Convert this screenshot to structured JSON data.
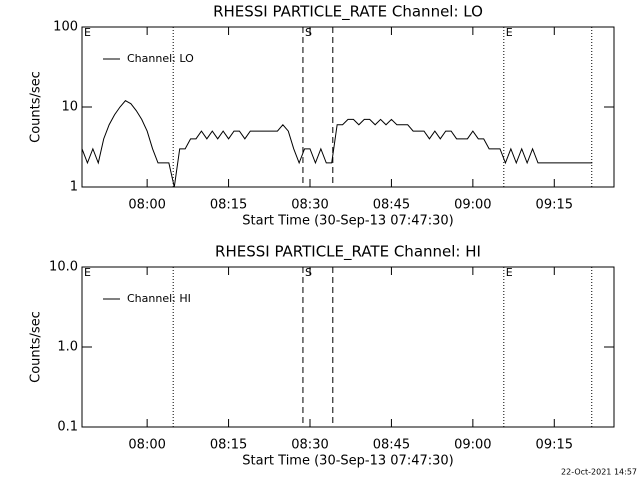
{
  "chart_data": [
    {
      "type": "line",
      "title": "RHESSI PARTICLE_RATE Channel: LO",
      "xlabel": "Start Time (30-Sep-13 07:47:30)",
      "ylabel": "Counts/sec",
      "log_y": true,
      "xlim": [
        468,
        566
      ],
      "ylim": [
        1,
        100
      ],
      "yticks": [
        1,
        10,
        100
      ],
      "xticks": [
        {
          "value": 480,
          "label": "08:00"
        },
        {
          "value": 495,
          "label": "08:15"
        },
        {
          "value": 510,
          "label": "08:30"
        },
        {
          "value": 525,
          "label": "08:45"
        },
        {
          "value": 540,
          "label": "09:00"
        },
        {
          "value": 555,
          "label": "09:15"
        }
      ],
      "markers": [
        {
          "x": 468,
          "label": "E"
        },
        {
          "x": 508.7,
          "label": "S"
        },
        {
          "x": 545.7,
          "label": "E"
        }
      ],
      "vlines": [
        {
          "x": 484.8,
          "style": "dotted"
        },
        {
          "x": 508.7,
          "style": "dashed"
        },
        {
          "x": 514.2,
          "style": "dashed"
        },
        {
          "x": 545.7,
          "style": "dotted"
        },
        {
          "x": 561.9,
          "style": "dotted"
        }
      ],
      "x": [
        468,
        469,
        470,
        471,
        472,
        473,
        474,
        475,
        476,
        477,
        478,
        479,
        480,
        481,
        482,
        483,
        484,
        485,
        486,
        487,
        488,
        489,
        490,
        491,
        492,
        493,
        494,
        495,
        496,
        497,
        498,
        499,
        500,
        501,
        502,
        503,
        504,
        505,
        506,
        507,
        508,
        509,
        510,
        511,
        512,
        513,
        514,
        515,
        516,
        517,
        518,
        519,
        520,
        521,
        522,
        523,
        524,
        525,
        526,
        527,
        528,
        529,
        530,
        531,
        532,
        533,
        534,
        535,
        536,
        537,
        538,
        539,
        540,
        541,
        542,
        543,
        544,
        545,
        546,
        547,
        548,
        549,
        550,
        551,
        552,
        553,
        554,
        555,
        556,
        557,
        558,
        559,
        560,
        561,
        562
      ],
      "series": [
        {
          "name": "Channel: LO",
          "color": "#000000",
          "values": [
            3,
            2,
            3,
            2,
            4,
            6,
            8,
            10,
            12,
            11,
            9,
            7,
            5,
            3,
            2,
            2,
            2,
            1,
            3,
            3,
            4,
            4,
            5,
            4,
            5,
            4,
            5,
            4,
            5,
            5,
            4,
            5,
            5,
            5,
            5,
            5,
            5,
            6,
            5,
            3,
            2,
            3,
            3,
            2,
            3,
            2,
            2,
            6,
            6,
            7,
            7,
            6,
            7,
            7,
            6,
            7,
            6,
            7,
            6,
            6,
            6,
            5,
            5,
            5,
            4,
            5,
            4,
            5,
            5,
            4,
            4,
            4,
            5,
            4,
            4,
            3,
            3,
            3,
            2,
            3,
            2,
            3,
            2,
            3,
            2,
            2,
            2,
            2,
            2,
            2,
            2,
            2,
            2,
            2,
            2
          ]
        }
      ]
    },
    {
      "type": "line",
      "title": "RHESSI PARTICLE_RATE Channel: HI",
      "xlabel": "Start Time (30-Sep-13 07:47:30)",
      "ylabel": "Counts/sec",
      "log_y": true,
      "xlim": [
        468,
        566
      ],
      "ylim": [
        0.1,
        10
      ],
      "yticks": [
        0.1,
        {
          "value": 1,
          "label": "1.0"
        },
        {
          "value": 10,
          "label": "10.0"
        }
      ],
      "xticks": [
        {
          "value": 480,
          "label": "08:00"
        },
        {
          "value": 495,
          "label": "08:15"
        },
        {
          "value": 510,
          "label": "08:30"
        },
        {
          "value": 525,
          "label": "08:45"
        },
        {
          "value": 540,
          "label": "09:00"
        },
        {
          "value": 555,
          "label": "09:15"
        }
      ],
      "markers": [
        {
          "x": 468,
          "label": "E"
        },
        {
          "x": 508.7,
          "label": "S"
        },
        {
          "x": 545.7,
          "label": "E"
        }
      ],
      "vlines": [
        {
          "x": 484.8,
          "style": "dotted"
        },
        {
          "x": 508.7,
          "style": "dashed"
        },
        {
          "x": 514.2,
          "style": "dashed"
        },
        {
          "x": 545.7,
          "style": "dotted"
        },
        {
          "x": 561.9,
          "style": "dotted"
        }
      ],
      "x": [],
      "series": [
        {
          "name": "Channel: HI",
          "color": "#000000",
          "values": []
        }
      ]
    }
  ],
  "timestamp": "22-Oct-2021 14:57"
}
